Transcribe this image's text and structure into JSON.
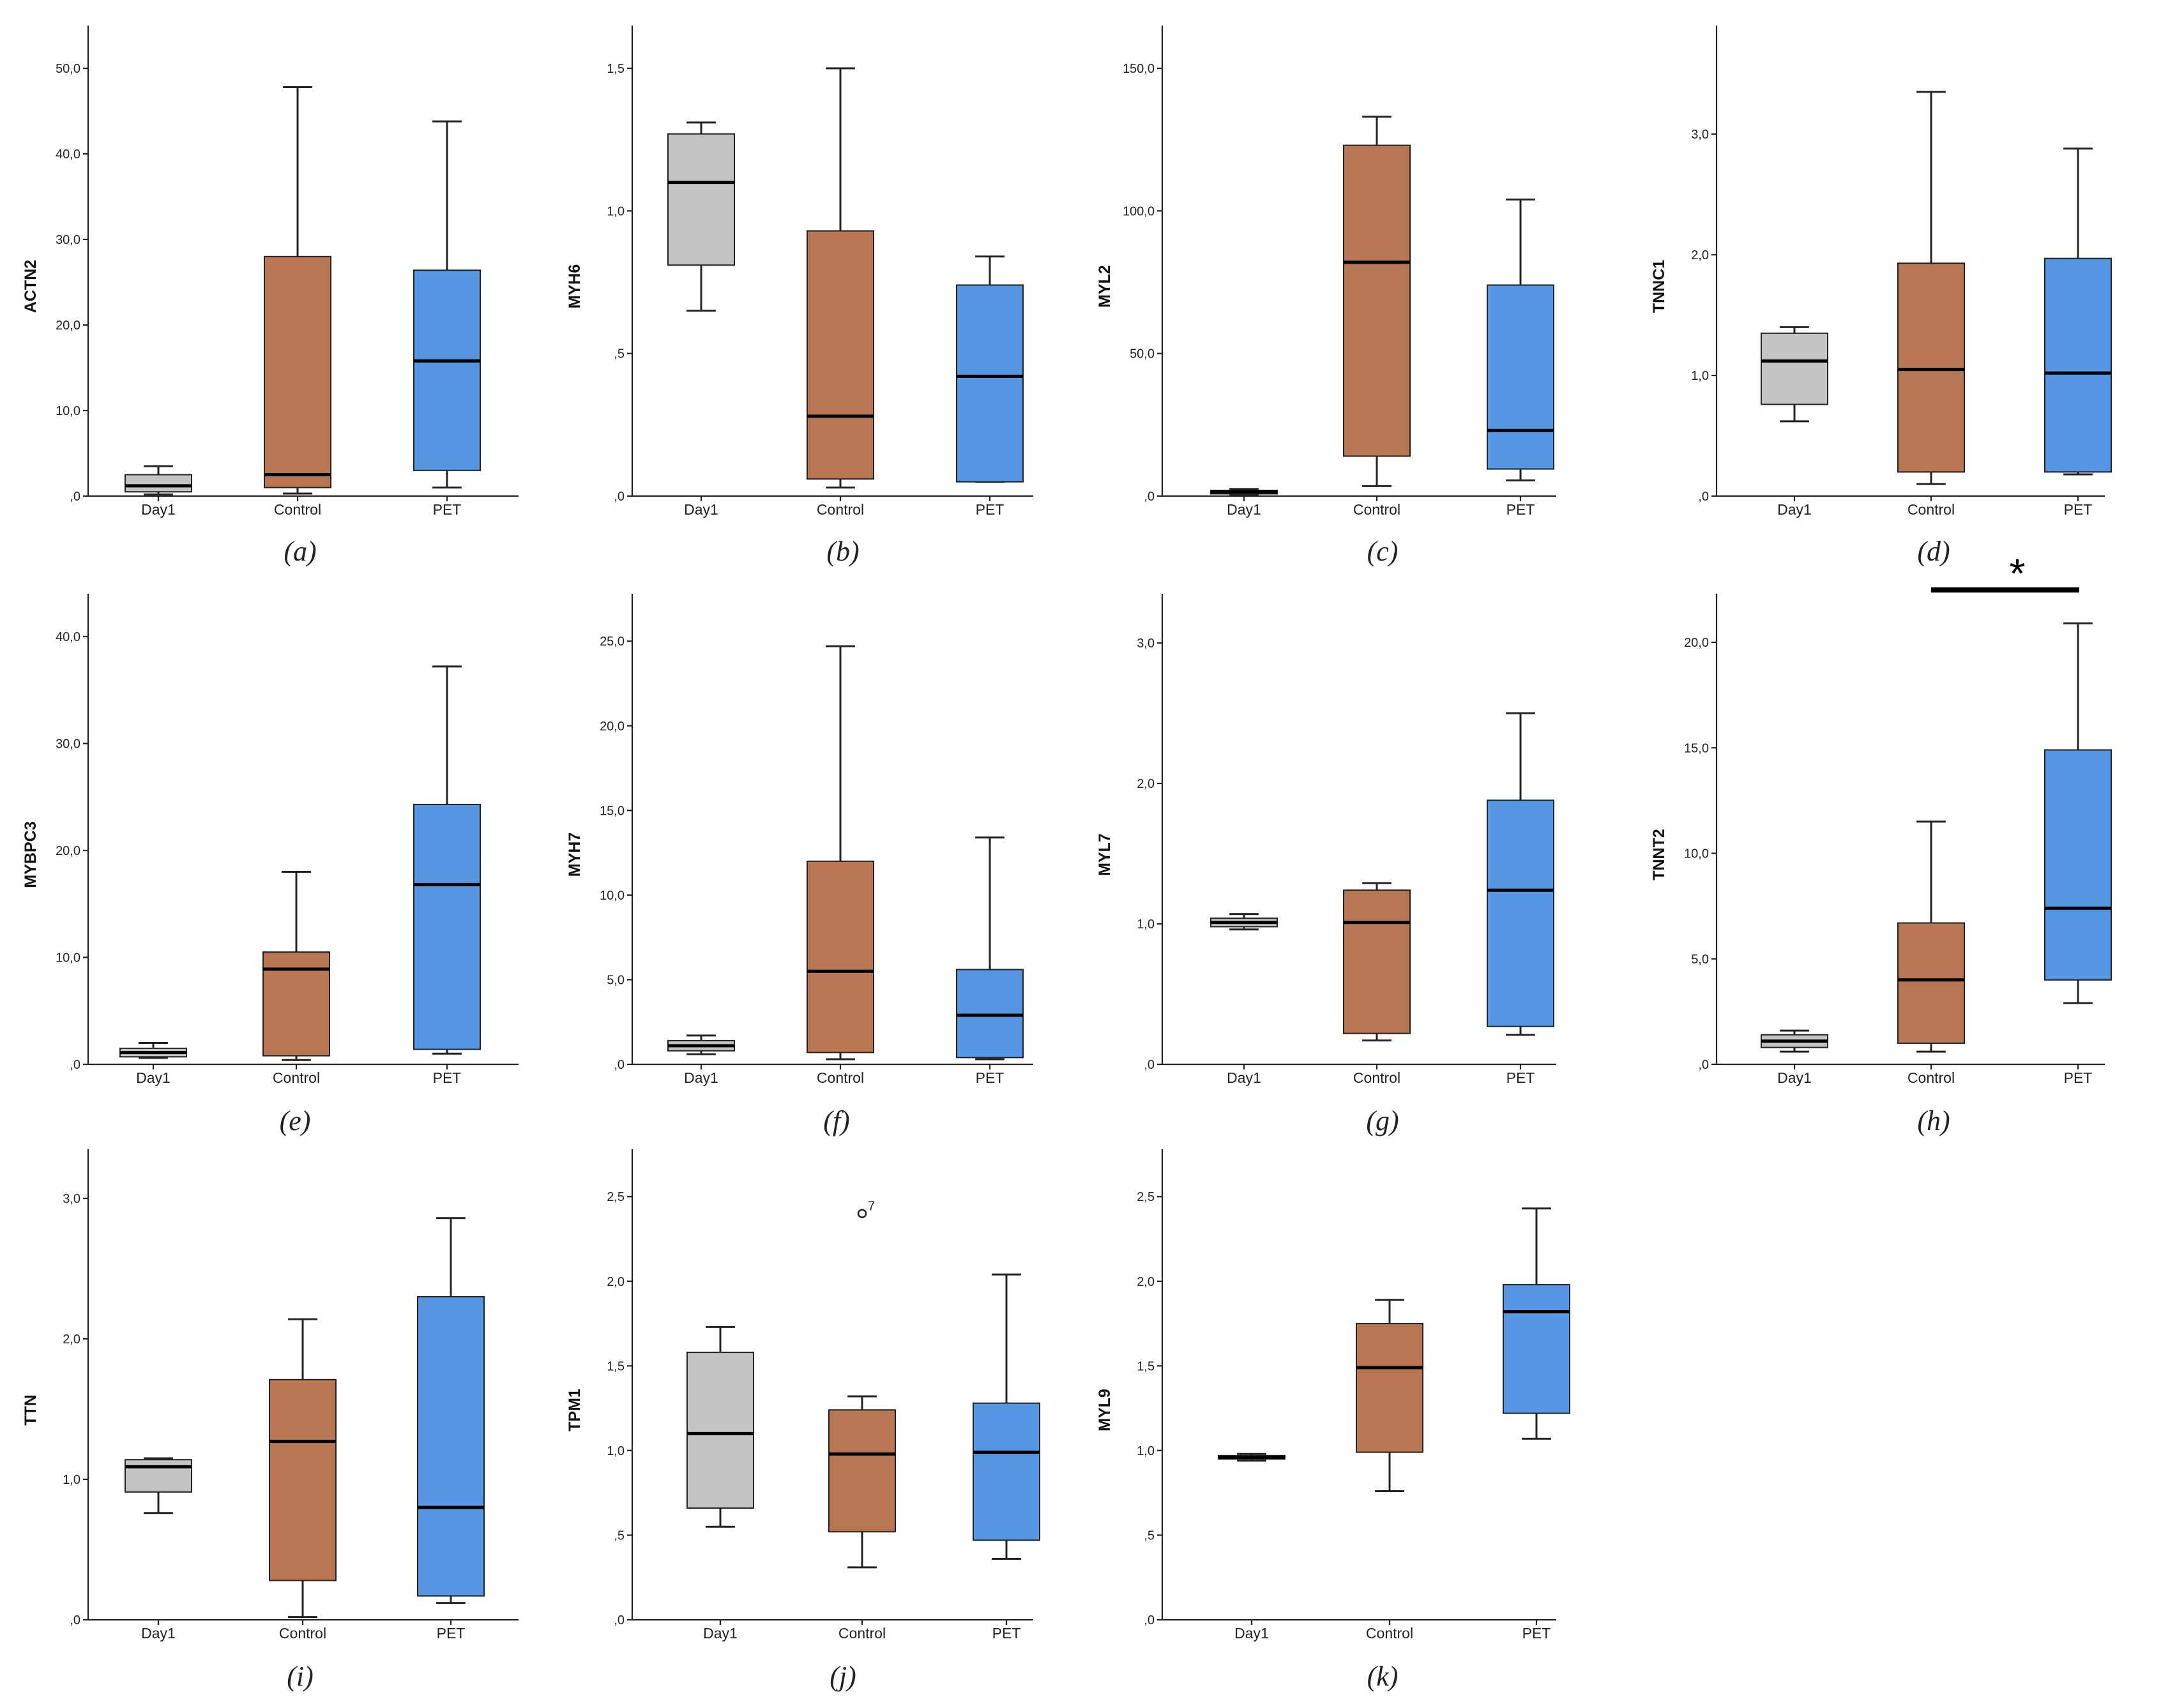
{
  "colors": {
    "Day1": "#c4c4c4",
    "Control": "#b87752",
    "PET": "#5597e3"
  },
  "chart_data": [
    {
      "type": "box",
      "id": "a",
      "caption": "(a)",
      "ylabel": "ACTN2",
      "ylim": [
        0,
        55
      ],
      "yticks": [
        0,
        10,
        20,
        30,
        40,
        50
      ],
      "ytick_labels": [
        ",0",
        "10,0",
        "20,0",
        "30,0",
        "40,0",
        "50,0"
      ],
      "categories": [
        "Day1",
        "Control",
        "PET"
      ],
      "boxes": [
        {
          "category": "Day1",
          "min": 0.2,
          "q1": 0.5,
          "median": 1.2,
          "q3": 2.5,
          "max": 3.5
        },
        {
          "category": "Control",
          "min": 0.3,
          "q1": 1.0,
          "median": 2.5,
          "q3": 28.0,
          "max": 47.8
        },
        {
          "category": "PET",
          "min": 1.0,
          "q1": 3.0,
          "median": 15.8,
          "q3": 26.4,
          "max": 43.8
        }
      ]
    },
    {
      "type": "box",
      "id": "b",
      "caption": "(b)",
      "ylabel": "MYH6",
      "ylim": [
        0,
        1.65
      ],
      "yticks": [
        0,
        0.5,
        1.0,
        1.5
      ],
      "ytick_labels": [
        ",0",
        ",5",
        "1,0",
        "1,5"
      ],
      "categories": [
        "Day1",
        "Control",
        "PET"
      ],
      "boxes": [
        {
          "category": "Day1",
          "min": 0.65,
          "q1": 0.81,
          "median": 1.1,
          "q3": 1.27,
          "max": 1.31
        },
        {
          "category": "Control",
          "min": 0.03,
          "q1": 0.06,
          "median": 0.28,
          "q3": 0.93,
          "max": 1.5
        },
        {
          "category": "PET",
          "min": 0.05,
          "q1": 0.05,
          "median": 0.42,
          "q3": 0.74,
          "max": 0.84
        }
      ]
    },
    {
      "type": "box",
      "id": "c",
      "caption": "(c)",
      "ylabel": "MYL2",
      "ylim": [
        0,
        165
      ],
      "yticks": [
        0,
        50,
        100,
        150
      ],
      "ytick_labels": [
        ",0",
        "50,0",
        "100,0",
        "150,0"
      ],
      "categories": [
        "Day1",
        "Control",
        "PET"
      ],
      "boxes": [
        {
          "category": "Day1",
          "min": 0.5,
          "q1": 0.8,
          "median": 1.5,
          "q3": 2.0,
          "max": 2.5
        },
        {
          "category": "Control",
          "min": 3.5,
          "q1": 14,
          "median": 82,
          "q3": 123,
          "max": 133
        },
        {
          "category": "PET",
          "min": 5.5,
          "q1": 9.5,
          "median": 23,
          "q3": 74,
          "max": 104
        }
      ]
    },
    {
      "type": "box",
      "id": "d",
      "caption": "(d)",
      "ylabel": "TNNC1",
      "ylim": [
        0,
        3.9
      ],
      "yticks": [
        0,
        1,
        2,
        3
      ],
      "ytick_labels": [
        ",0",
        "1,0",
        "2,0",
        "3,0"
      ],
      "categories": [
        "Day1",
        "Control",
        "PET"
      ],
      "boxes": [
        {
          "category": "Day1",
          "min": 0.62,
          "q1": 0.76,
          "median": 1.12,
          "q3": 1.35,
          "max": 1.4
        },
        {
          "category": "Control",
          "min": 0.1,
          "q1": 0.2,
          "median": 1.05,
          "q3": 1.93,
          "max": 3.35
        },
        {
          "category": "PET",
          "min": 0.18,
          "q1": 0.2,
          "median": 1.02,
          "q3": 1.97,
          "max": 2.88
        }
      ]
    },
    {
      "type": "box",
      "id": "e",
      "caption": "(e)",
      "ylabel": "MYBPC3",
      "ylim": [
        0,
        44
      ],
      "yticks": [
        0,
        10,
        20,
        30,
        40
      ],
      "ytick_labels": [
        ",0",
        "10,0",
        "20,0",
        "30,0",
        "40,0"
      ],
      "categories": [
        "Day1",
        "Control",
        "PET"
      ],
      "boxes": [
        {
          "category": "Day1",
          "min": 0.6,
          "q1": 0.7,
          "median": 1.1,
          "q3": 1.5,
          "max": 2.0
        },
        {
          "category": "Control",
          "min": 0.4,
          "q1": 0.8,
          "median": 8.9,
          "q3": 10.5,
          "max": 18
        },
        {
          "category": "PET",
          "min": 1.0,
          "q1": 1.4,
          "median": 16.8,
          "q3": 24.3,
          "max": 37.2
        }
      ]
    },
    {
      "type": "box",
      "id": "f",
      "caption": "(f)",
      "ylabel": "MYH7",
      "ylim": [
        0,
        27.8
      ],
      "yticks": [
        0,
        5,
        10,
        15,
        20,
        25
      ],
      "ytick_labels": [
        ",0",
        "5,0",
        "10,0",
        "15,0",
        "20,0",
        "25,0"
      ],
      "categories": [
        "Day1",
        "Control",
        "PET"
      ],
      "boxes": [
        {
          "category": "Day1",
          "min": 0.6,
          "q1": 0.8,
          "median": 1.1,
          "q3": 1.4,
          "max": 1.7
        },
        {
          "category": "Control",
          "min": 0.3,
          "q1": 0.7,
          "median": 5.5,
          "q3": 12.0,
          "max": 24.7
        },
        {
          "category": "PET",
          "min": 0.3,
          "q1": 0.4,
          "median": 2.9,
          "q3": 5.6,
          "max": 13.4
        }
      ]
    },
    {
      "type": "box",
      "id": "g",
      "caption": "(g)",
      "ylabel": "MYL7",
      "ylim": [
        0,
        3.35
      ],
      "yticks": [
        0,
        1,
        2,
        3
      ],
      "ytick_labels": [
        ",0",
        "1,0",
        "2,0",
        "3,0"
      ],
      "categories": [
        "Day1",
        "Control",
        "PET"
      ],
      "boxes": [
        {
          "category": "Day1",
          "min": 0.96,
          "q1": 0.98,
          "median": 1.01,
          "q3": 1.04,
          "max": 1.07
        },
        {
          "category": "Control",
          "min": 0.17,
          "q1": 0.22,
          "median": 1.01,
          "q3": 1.24,
          "max": 1.29
        },
        {
          "category": "PET",
          "min": 0.21,
          "q1": 0.27,
          "median": 1.24,
          "q3": 1.88,
          "max": 2.5
        }
      ]
    },
    {
      "type": "box",
      "id": "h",
      "caption": "(h)",
      "ylabel": "TNNT2",
      "ylim": [
        0,
        22.3
      ],
      "yticks": [
        0,
        5,
        10,
        15,
        20
      ],
      "ytick_labels": [
        ",0",
        "5,0",
        "10,0",
        "15,0",
        "20,0"
      ],
      "categories": [
        "Day1",
        "Control",
        "PET"
      ],
      "significance": {
        "from": "Control",
        "to": "PET",
        "label": "*"
      },
      "boxes": [
        {
          "category": "Day1",
          "min": 0.6,
          "q1": 0.8,
          "median": 1.1,
          "q3": 1.4,
          "max": 1.6
        },
        {
          "category": "Control",
          "min": 0.6,
          "q1": 1.0,
          "median": 4.0,
          "q3": 6.7,
          "max": 11.5
        },
        {
          "category": "PET",
          "min": 2.9,
          "q1": 4.0,
          "median": 7.4,
          "q3": 14.9,
          "max": 20.9
        }
      ]
    },
    {
      "type": "box",
      "id": "i",
      "caption": "(i)",
      "ylabel": "TTN",
      "ylim": [
        0,
        3.35
      ],
      "yticks": [
        0,
        1,
        2,
        3
      ],
      "ytick_labels": [
        ",0",
        "1,0",
        "2,0",
        "3,0"
      ],
      "categories": [
        "Day1",
        "Control",
        "PET"
      ],
      "boxes": [
        {
          "category": "Day1",
          "min": 0.76,
          "q1": 0.91,
          "median": 1.09,
          "q3": 1.14,
          "max": 1.15
        },
        {
          "category": "Control",
          "min": 0.02,
          "q1": 0.28,
          "median": 1.27,
          "q3": 1.71,
          "max": 2.14
        },
        {
          "category": "PET",
          "min": 0.12,
          "q1": 0.17,
          "median": 0.8,
          "q3": 2.3,
          "max": 2.86
        }
      ]
    },
    {
      "type": "box",
      "id": "j",
      "caption": "(j)",
      "ylabel": "TPM1",
      "ylim": [
        0,
        2.78
      ],
      "yticks": [
        0,
        0.5,
        1.0,
        1.5,
        2.0,
        2.5
      ],
      "ytick_labels": [
        ",0",
        ",5",
        "1,0",
        "1,5",
        "2,0",
        "2,5"
      ],
      "categories": [
        "Day1",
        "Control",
        "PET"
      ],
      "boxes": [
        {
          "category": "Day1",
          "min": 0.55,
          "q1": 0.66,
          "median": 1.1,
          "q3": 1.58,
          "max": 1.73
        },
        {
          "category": "Control",
          "min": 0.31,
          "q1": 0.52,
          "median": 0.98,
          "q3": 1.24,
          "max": 1.32,
          "outliers": [
            {
              "value": 2.4,
              "label": "7"
            }
          ]
        },
        {
          "category": "PET",
          "min": 0.36,
          "q1": 0.47,
          "median": 0.99,
          "q3": 1.28,
          "max": 2.04
        }
      ]
    },
    {
      "type": "box",
      "id": "k",
      "caption": "(k)",
      "ylabel": "MYL9",
      "ylim": [
        0,
        2.78
      ],
      "yticks": [
        0,
        0.5,
        1.0,
        1.5,
        2.0,
        2.5
      ],
      "ytick_labels": [
        ",0",
        ",5",
        "1,0",
        "1,5",
        "2,0",
        "2,5"
      ],
      "categories": [
        "Day1",
        "Control",
        "PET"
      ],
      "boxes": [
        {
          "category": "Day1",
          "min": 0.94,
          "q1": 0.95,
          "median": 0.96,
          "q3": 0.97,
          "max": 0.98
        },
        {
          "category": "Control",
          "min": 0.76,
          "q1": 0.99,
          "median": 1.49,
          "q3": 1.75,
          "max": 1.89
        },
        {
          "category": "PET",
          "min": 1.07,
          "q1": 1.22,
          "median": 1.82,
          "q3": 1.98,
          "max": 2.43
        }
      ]
    }
  ]
}
